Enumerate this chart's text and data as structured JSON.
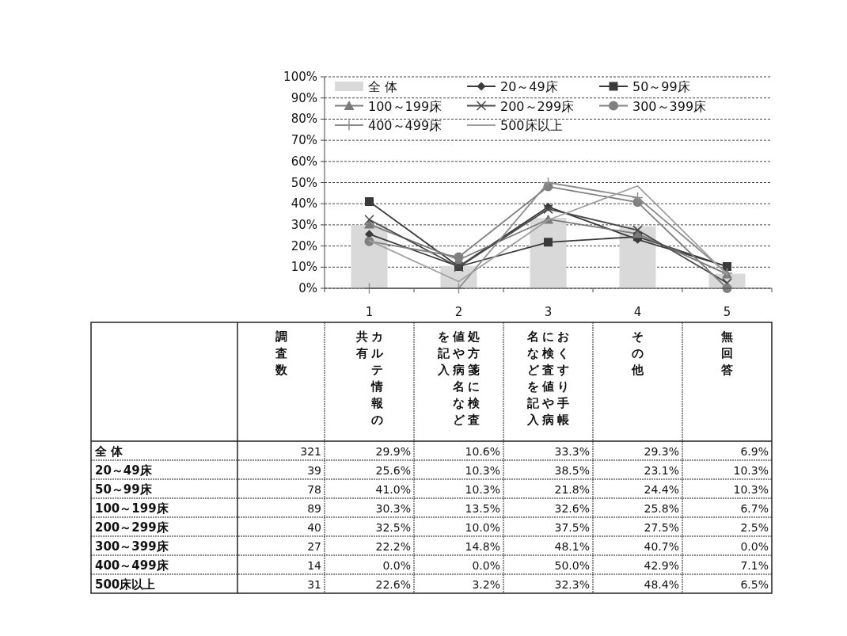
{
  "chart_data": {
    "type": "line",
    "categories": [
      "1",
      "2",
      "3",
      "4",
      "5"
    ],
    "ylim": [
      0,
      100
    ],
    "yticks": [
      {
        "value": 0,
        "label": "0%"
      },
      {
        "value": 10,
        "label": "10%"
      },
      {
        "value": 20,
        "label": "20%"
      },
      {
        "value": 30,
        "label": "30%"
      },
      {
        "value": 40,
        "label": "40%"
      },
      {
        "value": 50,
        "label": "50%"
      },
      {
        "value": 60,
        "label": "60%"
      },
      {
        "value": 70,
        "label": "70%"
      },
      {
        "value": 80,
        "label": "80%"
      },
      {
        "value": 90,
        "label": "90%"
      },
      {
        "value": 100,
        "label": "100%"
      }
    ],
    "grid": "y",
    "legend": "top",
    "annotations": [
      "調査数",
      "カルテ情報の",
      "共有",
      "処方箋に検査",
      "値や病名など",
      "を記入",
      "おくすり手帳",
      "に検査値や病",
      "名などを記入",
      "その他",
      "無回答",
      "321",
      "39",
      "78",
      "89",
      "40",
      "27",
      "14",
      "31"
    ],
    "series": [
      {
        "name": "全 体",
        "type": "bar",
        "color": "#d9d9d9",
        "values": [
          29.9,
          10.6,
          33.3,
          29.3,
          6.9
        ],
        "value_labels": [
          "29.9%",
          "10.6%",
          "33.3%",
          "29.3%",
          "6.9%"
        ]
      },
      {
        "name": "20～49床",
        "color": "#3a3a3a",
        "marker": "diamond",
        "values": [
          25.6,
          10.3,
          38.5,
          23.1,
          10.3
        ],
        "value_labels": [
          "25.6%",
          "10.3%",
          "38.5%",
          "23.1%",
          "10.3%"
        ]
      },
      {
        "name": "50～99床",
        "color": "#3a3a3a",
        "marker": "square",
        "values": [
          41.0,
          10.3,
          21.8,
          24.4,
          10.3
        ],
        "value_labels": [
          "41.0%",
          "10.3%",
          "21.8%",
          "24.4%",
          "10.3%"
        ]
      },
      {
        "name": "100～199床",
        "color": "#7a7a7a",
        "marker": "triangle",
        "values": [
          30.3,
          13.5,
          32.6,
          25.8,
          6.7
        ],
        "value_labels": [
          "30.3%",
          "13.5%",
          "32.6%",
          "25.8%",
          "6.7%"
        ]
      },
      {
        "name": "200～299床",
        "color": "#4a4a4a",
        "marker": "cross",
        "values": [
          32.5,
          10.0,
          37.5,
          27.5,
          2.5
        ],
        "value_labels": [
          "32.5%",
          "10.0%",
          "37.5%",
          "27.5%",
          "2.5%"
        ]
      },
      {
        "name": "300～399床",
        "color": "#808080",
        "marker": "circle",
        "values": [
          22.2,
          14.8,
          48.1,
          40.7,
          0.0
        ],
        "value_labels": [
          "22.2%",
          "14.8%",
          "48.1%",
          "40.7%",
          "0.0%"
        ]
      },
      {
        "name": "400～499床",
        "color": "#8c8c8c",
        "marker": "plus",
        "values": [
          0.0,
          0.0,
          50.0,
          42.9,
          7.1
        ],
        "value_labels": [
          "0.0%",
          "0.0%",
          "50.0%",
          "42.9%",
          "7.1%"
        ]
      },
      {
        "name": "500床以上",
        "color": "#a0a0a0",
        "marker": "none",
        "values": [
          22.6,
          3.2,
          32.3,
          48.4,
          6.5
        ],
        "value_labels": [
          "22.6%",
          "3.2%",
          "32.3%",
          "48.4%",
          "6.5%"
        ]
      }
    ]
  }
}
